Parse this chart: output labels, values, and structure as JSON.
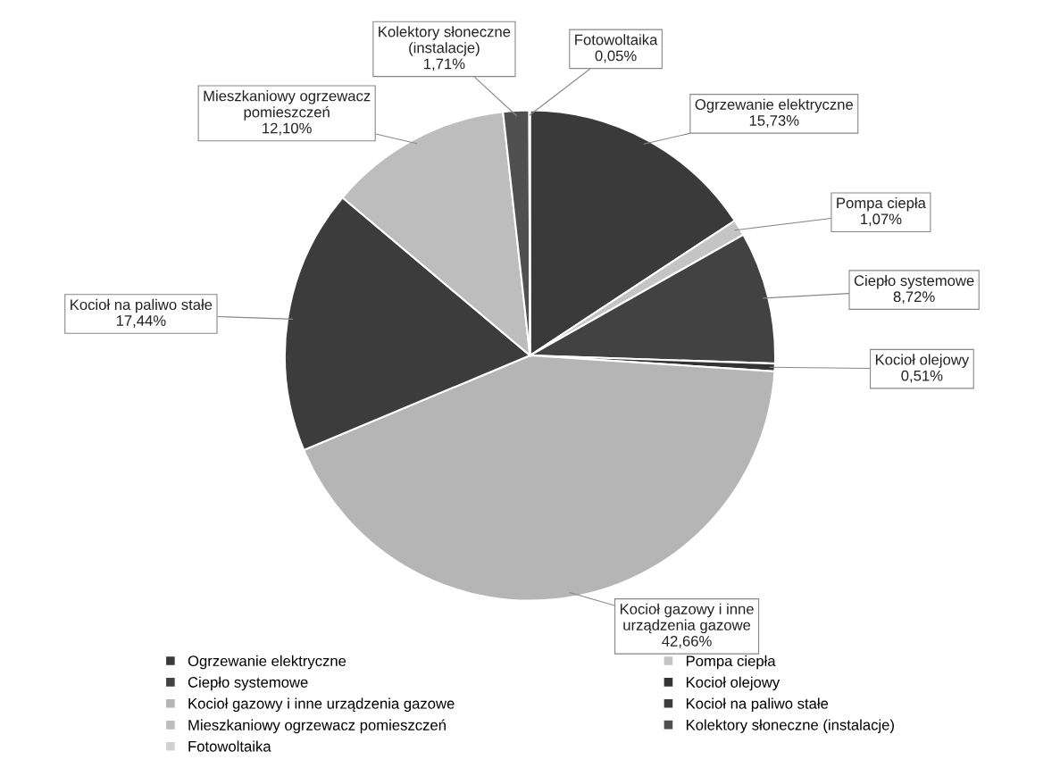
{
  "chart_data": {
    "type": "pie",
    "categories": [
      "Ogrzewanie elektryczne",
      "Pompa ciepła",
      "Ciepło systemowe",
      "Kocioł olejowy",
      "Kocioł gazowy i inne urządzenia gazowe",
      "Kocioł na paliwo stałe",
      "Mieszkaniowy ogrzewacz pomieszczeń",
      "Kolektory słoneczne (instalacje)",
      "Fotowoltaika"
    ],
    "values": [
      15.73,
      1.07,
      8.72,
      0.51,
      42.66,
      17.44,
      12.1,
      1.71,
      0.05
    ],
    "value_labels": [
      "15,73%",
      "1,07%",
      "8,72%",
      "0,51%",
      "42,66%",
      "17,44%",
      "12,10%",
      "1,71%",
      "0,05%"
    ],
    "colors": [
      "#3a3a3a",
      "#c4c4c4",
      "#424242",
      "#333333",
      "#b5b5b5",
      "#3c3c3c",
      "#bdbdbd",
      "#505050",
      "#d0d0d0"
    ],
    "legend": "bottom"
  }
}
